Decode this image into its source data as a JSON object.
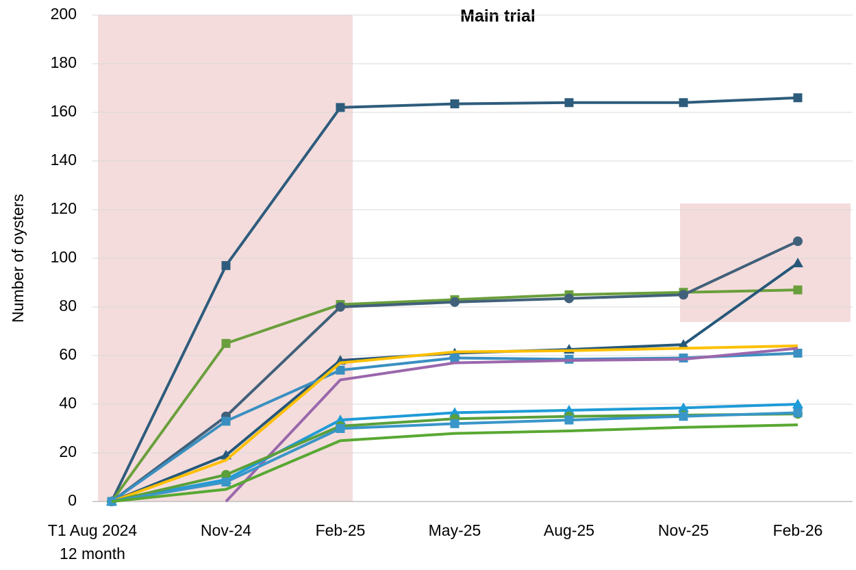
{
  "chart_data": {
    "type": "line",
    "title": "Main trial",
    "y_label": "Number of oysters",
    "categories": [
      "T1 Aug 2024\n12 month",
      "Nov-24",
      "Feb-25",
      "May-25",
      "Aug-25",
      "Nov-25",
      "Feb-26"
    ],
    "ylim": [
      0,
      200
    ],
    "yticks": [
      0,
      20,
      40,
      60,
      80,
      100,
      120,
      140,
      160,
      180,
      200
    ],
    "grid": true,
    "series": [
      {
        "color": "#2e5c7c",
        "marker": "square",
        "values": [
          0,
          97,
          162,
          163.5,
          164,
          164,
          166
        ]
      },
      {
        "color": "#6a9f3c",
        "marker": "square",
        "values": [
          0,
          65,
          81,
          83,
          85,
          86,
          87
        ]
      },
      {
        "color": "#41607a",
        "marker": "circle",
        "values": [
          0,
          35,
          80,
          82,
          83.5,
          85,
          107
        ]
      },
      {
        "color": "#26587a",
        "marker": "triangle",
        "values": [
          0,
          19,
          58,
          61,
          62.5,
          64.5,
          98
        ]
      },
      {
        "color": "#3a8fc0",
        "marker": "square",
        "values": [
          0,
          33,
          54,
          59,
          58.5,
          59,
          61
        ]
      },
      {
        "color": "#ffc000",
        "marker": "none",
        "values": [
          0,
          17,
          57,
          61.5,
          62,
          63,
          64
        ]
      },
      {
        "color": "#9a67ac",
        "marker": "none",
        "values": [
          null,
          0,
          50,
          57,
          58,
          58.5,
          63
        ]
      },
      {
        "color": "#1f9bd7",
        "marker": "triangle",
        "values": [
          0,
          9,
          33.5,
          36.5,
          37.5,
          38.5,
          40
        ]
      },
      {
        "color": "#5a9f3a",
        "marker": "circle",
        "values": [
          0,
          11,
          31,
          34,
          35,
          35.5,
          36
        ]
      },
      {
        "color": "#3a96c8",
        "marker": "square",
        "values": [
          0,
          8,
          30,
          32,
          33.5,
          35,
          36.5
        ]
      },
      {
        "color": "#58a832",
        "marker": "none",
        "values": [
          0,
          5,
          25,
          28,
          29,
          30.5,
          31.5
        ]
      }
    ]
  }
}
